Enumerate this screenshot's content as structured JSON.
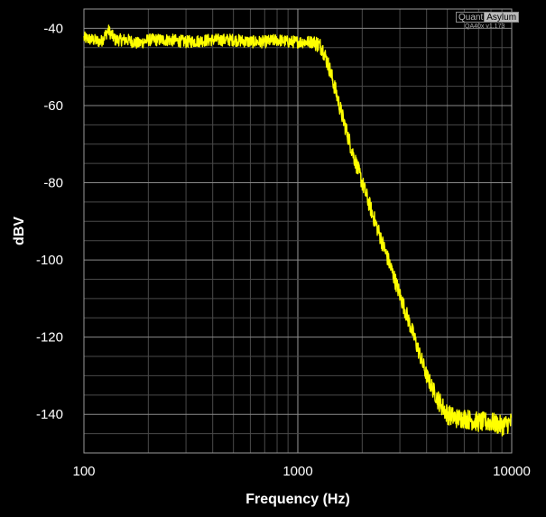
{
  "watermark": {
    "brand_a": "Quant",
    "brand_b": "Asylum",
    "version": "QA40x v1.173"
  },
  "chart_data": {
    "type": "line",
    "title": "",
    "xlabel": "Frequency (Hz)",
    "ylabel": "dBV",
    "x_scale": "log",
    "xlim": [
      100,
      10000
    ],
    "ylim": [
      -150,
      -35
    ],
    "x_ticks": [
      100,
      1000,
      10000
    ],
    "x_tick_labels": [
      "100",
      "1000",
      "10000"
    ],
    "y_ticks": [
      -40,
      -60,
      -80,
      -100,
      -120,
      -140
    ],
    "y_tick_labels": [
      "-40",
      "-60",
      "-80",
      "-100",
      "-120",
      "-140"
    ],
    "grid": true,
    "legend": "none",
    "series": [
      {
        "color": "#ffff00",
        "x": [
          100,
          110,
          120,
          125,
          130,
          140,
          160,
          180,
          200,
          250,
          300,
          400,
          500,
          600,
          700,
          800,
          900,
          1000,
          1100,
          1200,
          1300,
          1400,
          1500,
          1600,
          1800,
          2000,
          2200,
          2500,
          2800,
          3000,
          3500,
          4000,
          4500,
          5000,
          5500,
          6000,
          7000,
          8000,
          9000,
          10000
        ],
        "y": [
          -42.5,
          -43,
          -43.5,
          -42,
          -40.5,
          -43,
          -43,
          -44,
          -43,
          -43,
          -43.5,
          -43,
          -43,
          -43.5,
          -43.5,
          -43,
          -43.5,
          -43.5,
          -43.5,
          -43.5,
          -45,
          -50,
          -56,
          -62,
          -72,
          -80,
          -87,
          -96,
          -104,
          -109,
          -120,
          -130,
          -136,
          -140,
          -141,
          -141,
          -142,
          -142,
          -143,
          -142
        ]
      }
    ]
  }
}
